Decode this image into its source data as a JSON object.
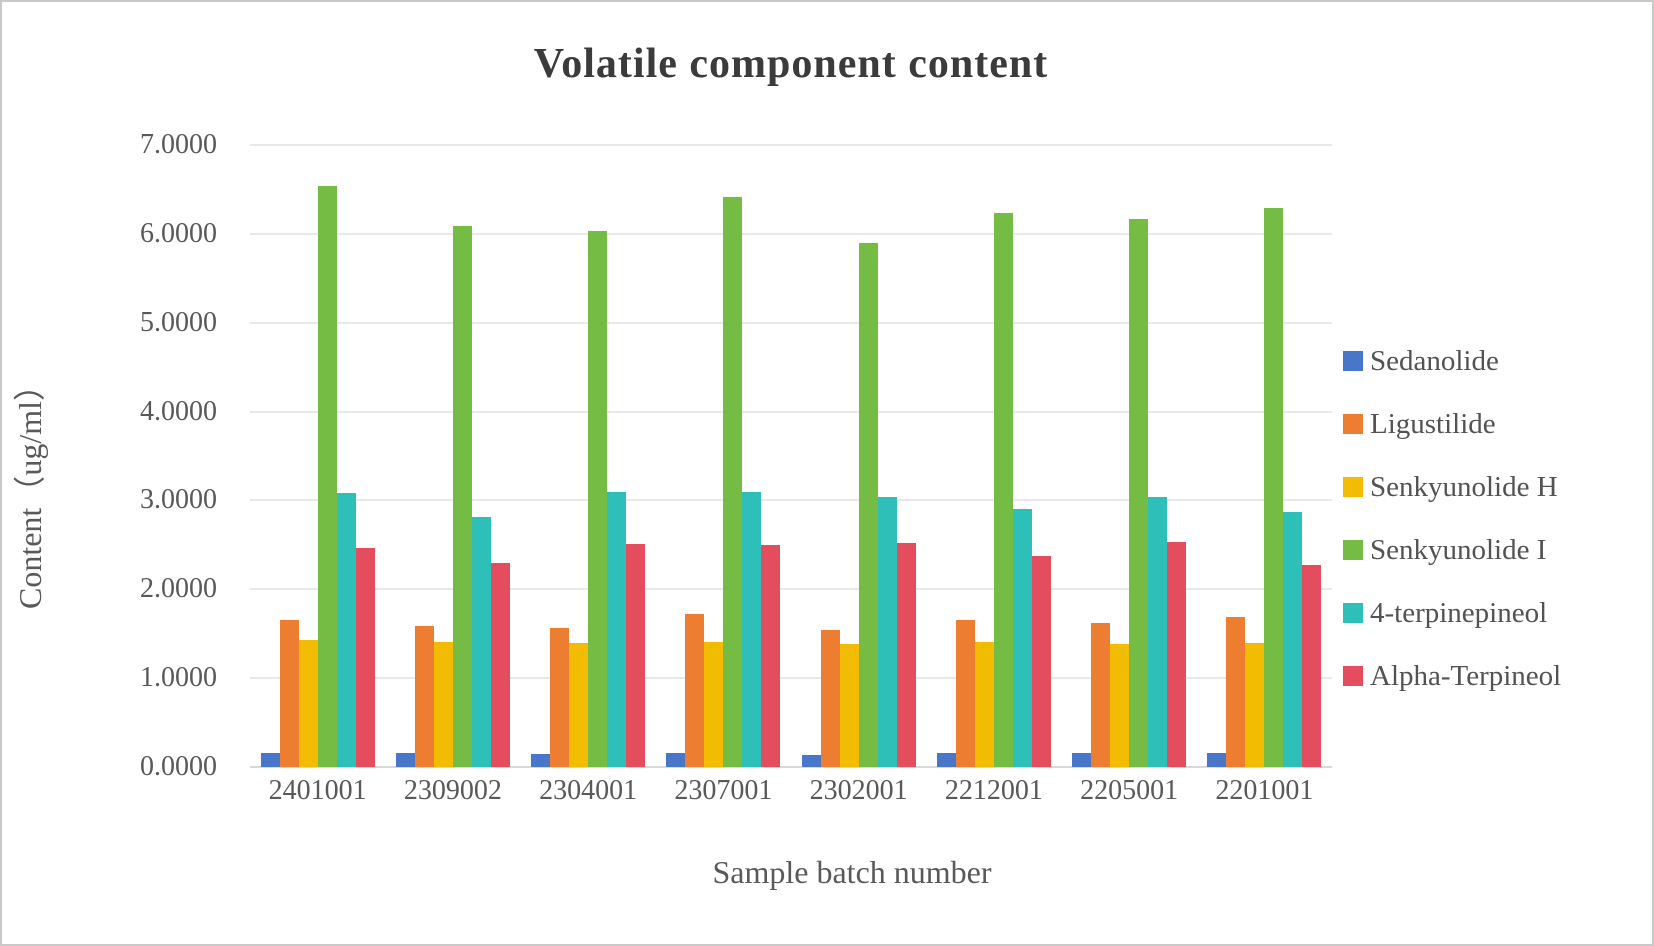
{
  "page": {
    "background": "#FFFFFF",
    "border_color": "#C9C9C9"
  },
  "chart_data": {
    "type": "bar",
    "title": "Volatile component content",
    "xlabel": "Sample batch number",
    "ylabel": "Content（ug/ml）",
    "ylim": [
      0,
      7
    ],
    "y_tick_step": 1,
    "y_tick_labels": [
      "0.0000",
      "1.0000",
      "2.0000",
      "3.0000",
      "4.0000",
      "5.0000",
      "6.0000",
      "7.0000"
    ],
    "grid": true,
    "legend_position": "right",
    "categories": [
      "2401001",
      "2309002",
      "2304001",
      "2307001",
      "2302001",
      "2212001",
      "2205001",
      "2201001"
    ],
    "series": [
      {
        "name": "Sedanolide",
        "color": "#4876C8",
        "values": [
          0.16,
          0.16,
          0.15,
          0.16,
          0.14,
          0.16,
          0.16,
          0.16
        ]
      },
      {
        "name": "Ligustilide",
        "color": "#ED7D31",
        "values": [
          1.66,
          1.59,
          1.57,
          1.72,
          1.54,
          1.66,
          1.62,
          1.69
        ]
      },
      {
        "name": "Senkyunolide H",
        "color": "#F2BC02",
        "values": [
          1.43,
          1.41,
          1.4,
          1.41,
          1.38,
          1.41,
          1.38,
          1.4
        ]
      },
      {
        "name": "Senkyunolide I",
        "color": "#74BC44",
        "values": [
          6.54,
          6.09,
          6.03,
          6.41,
          5.9,
          6.23,
          6.17,
          6.29
        ]
      },
      {
        "name": "4-terpinepineol",
        "color": "#2EC0B8",
        "values": [
          3.08,
          2.81,
          3.1,
          3.09,
          3.04,
          2.9,
          3.04,
          2.87
        ]
      },
      {
        "name": "Alpha-Terpineol",
        "color": "#E44D5E",
        "values": [
          2.46,
          2.3,
          2.51,
          2.5,
          2.52,
          2.38,
          2.53,
          2.27
        ]
      }
    ]
  },
  "colors": {
    "grid_line": "#E9E9E9",
    "axis_line": "#D9D9D9",
    "tick_text": "#595959",
    "axis_title_text": "#595959",
    "title_text": "#3B3B3B",
    "legend_text": "#535353"
  }
}
